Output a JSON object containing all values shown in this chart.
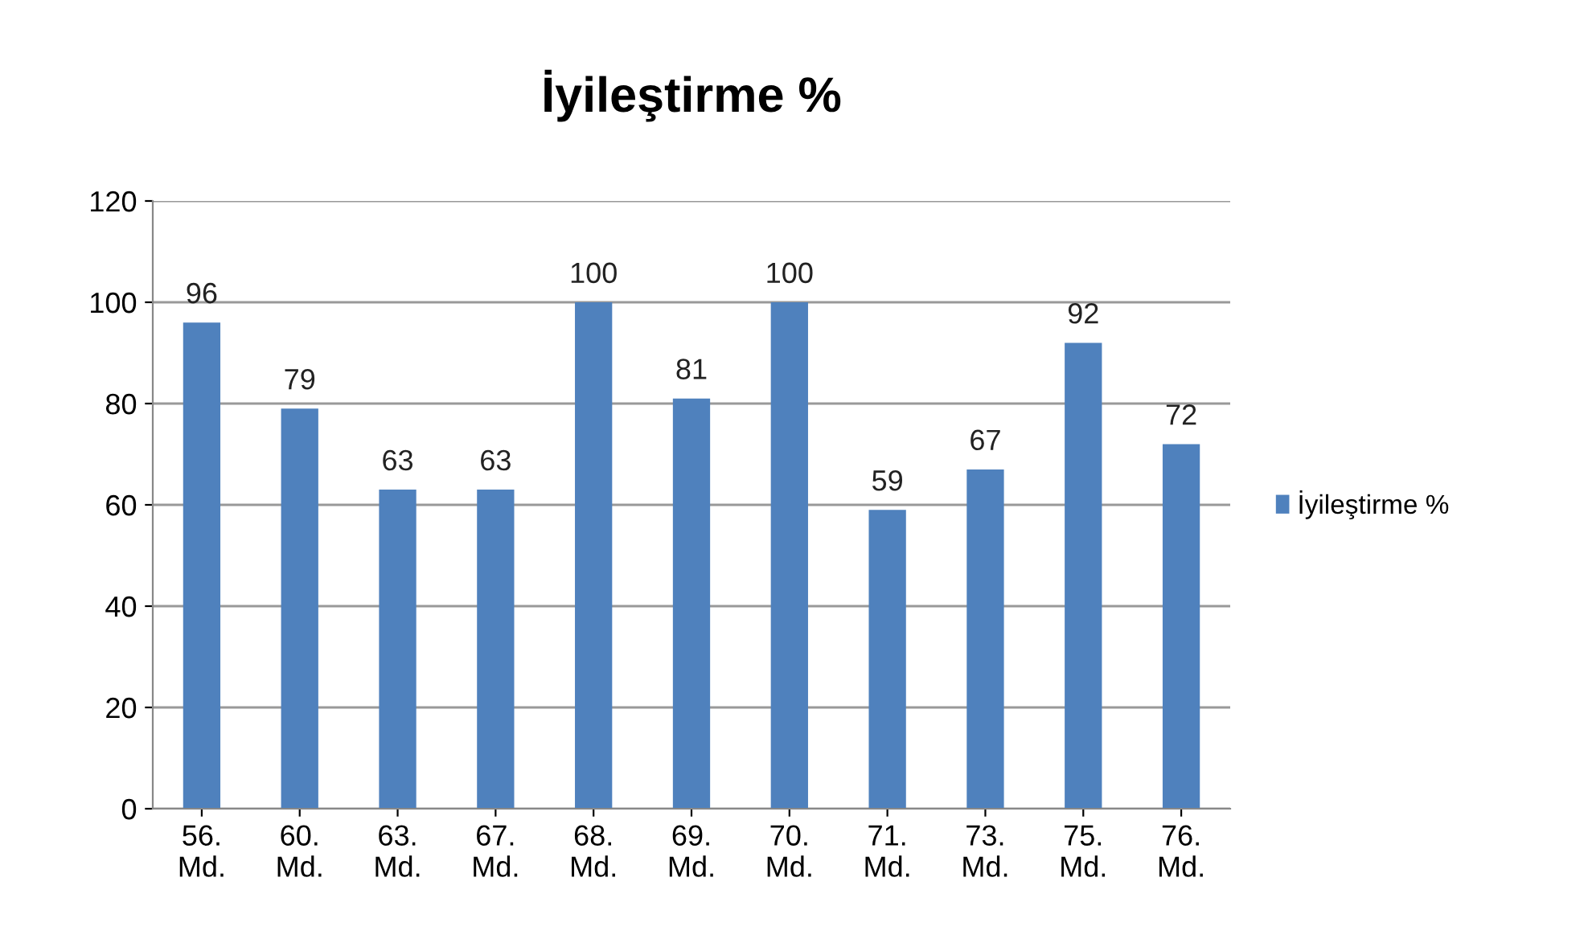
{
  "chart_data": {
    "type": "bar",
    "title": "İyileştirme %",
    "categories": [
      "56.\nMd.",
      "60.\nMd.",
      "63.\nMd.",
      "67.\nMd.",
      "68.\nMd.",
      "69.\nMd.",
      "70.\nMd.",
      "71.\nMd.",
      "73.\nMd.",
      "75.\nMd.",
      "76.\nMd."
    ],
    "series": [
      {
        "name": "İyileştirme %",
        "color": "#4f81bd",
        "values": [
          96,
          79,
          63,
          63,
          100,
          81,
          100,
          59,
          67,
          92,
          72
        ]
      }
    ],
    "ylim": [
      0,
      120
    ],
    "yticks": [
      0,
      20,
      40,
      60,
      80,
      100,
      120
    ],
    "grid": "y",
    "legend": "right",
    "data_labels": true
  }
}
